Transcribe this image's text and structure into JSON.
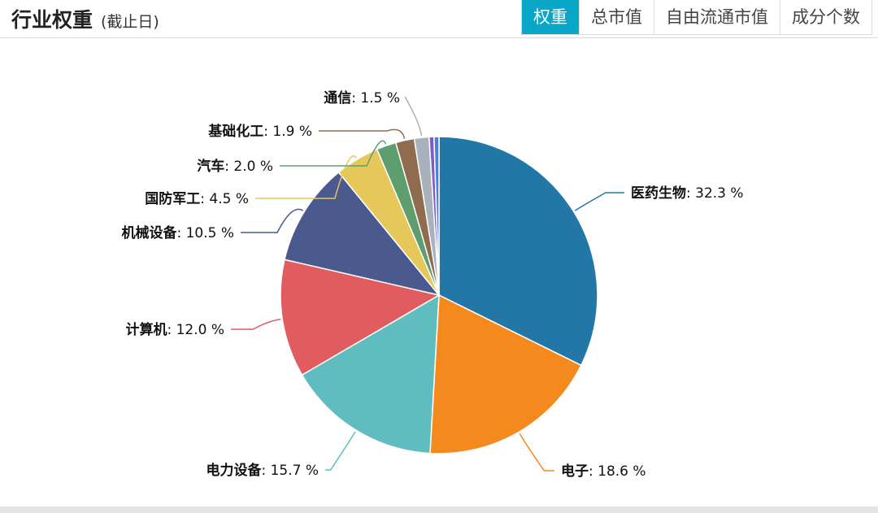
{
  "header": {
    "title": "行业权重",
    "subtitle": "(截止日)",
    "tabs": [
      {
        "label": "权重",
        "active": true
      },
      {
        "label": "总市值",
        "active": false
      },
      {
        "label": "自由流通市值",
        "active": false
      },
      {
        "label": "成分个数",
        "active": false
      }
    ]
  },
  "chart_data": {
    "type": "pie",
    "title": "",
    "slices": [
      {
        "name": "医药生物",
        "value": 32.3,
        "label": "32.3 %",
        "color": "#2277a6"
      },
      {
        "name": "电子",
        "value": 18.6,
        "label": "18.6 %",
        "color": "#f48a1d"
      },
      {
        "name": "电力设备",
        "value": 15.7,
        "label": "15.7 %",
        "color": "#5fbdbf"
      },
      {
        "name": "计算机",
        "value": 12.0,
        "label": "12.0 %",
        "color": "#e05c5e"
      },
      {
        "name": "机械设备",
        "value": 10.5,
        "label": "10.5 %",
        "color": "#4a5a8e"
      },
      {
        "name": "国防军工",
        "value": 4.5,
        "label": "4.5 %",
        "color": "#e6c75a"
      },
      {
        "name": "汽车",
        "value": 2.0,
        "label": "2.0 %",
        "color": "#5e9e6e"
      },
      {
        "name": "基础化工",
        "value": 1.9,
        "label": "1.9 %",
        "color": "#8f6b50"
      },
      {
        "name": "通信",
        "value": 1.5,
        "label": "1.5 %",
        "color": "#a8b1bc"
      },
      {
        "name": "",
        "value": 0.5,
        "label": "",
        "color": "#7b5fc9"
      },
      {
        "name": "",
        "value": 0.5,
        "label": "",
        "color": "#4d7fd6"
      }
    ]
  }
}
